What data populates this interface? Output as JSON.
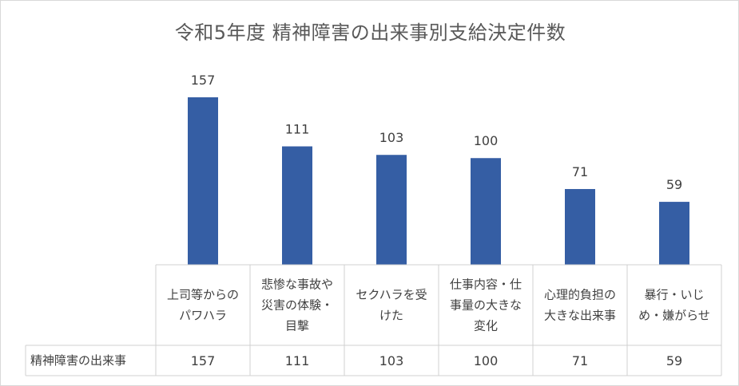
{
  "chart_data": {
    "type": "bar",
    "title": "令和5年度 精神障害の出来事別支給決定件数",
    "categories": [
      [
        "上司等からの",
        "パワハラ"
      ],
      [
        "悲惨な事故や",
        "災害の体験・",
        "目撃"
      ],
      [
        "セクハラを受",
        "けた"
      ],
      [
        "仕事内容・仕",
        "事量の大きな",
        "変化"
      ],
      [
        "心理的負担の",
        "大きな出来事"
      ],
      [
        "暴行・いじ",
        "め・嫌がらせ"
      ]
    ],
    "series": [
      {
        "name": "精神障害の出来事",
        "values": [
          157,
          111,
          103,
          100,
          71,
          59
        ]
      }
    ],
    "ylim": [
      0,
      175
    ],
    "grid": false,
    "legend": "data-table",
    "bar_color": "#355ea4"
  }
}
